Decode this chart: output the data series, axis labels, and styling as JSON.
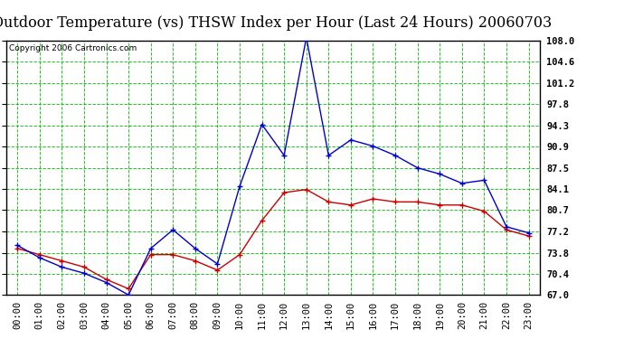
{
  "title": "Outdoor Temperature (vs) THSW Index per Hour (Last 24 Hours) 20060703",
  "copyright": "Copyright 2006 Cartronics.com",
  "hours": [
    "00:00",
    "01:00",
    "02:00",
    "03:00",
    "04:00",
    "05:00",
    "06:00",
    "07:00",
    "08:00",
    "09:00",
    "10:00",
    "11:00",
    "12:00",
    "13:00",
    "14:00",
    "15:00",
    "16:00",
    "17:00",
    "18:00",
    "19:00",
    "20:00",
    "21:00",
    "22:00",
    "23:00"
  ],
  "temp": [
    74.5,
    73.5,
    72.5,
    71.5,
    69.5,
    68.0,
    73.5,
    73.5,
    72.5,
    71.0,
    73.5,
    79.0,
    83.5,
    84.0,
    82.0,
    81.5,
    82.5,
    82.0,
    82.0,
    81.5,
    81.5,
    80.5,
    77.5,
    76.5
  ],
  "thsw": [
    75.0,
    73.0,
    71.5,
    70.5,
    69.0,
    67.0,
    74.5,
    77.5,
    74.5,
    72.0,
    84.5,
    94.5,
    89.5,
    108.5,
    89.5,
    92.0,
    91.0,
    89.5,
    87.5,
    86.5,
    85.0,
    85.5,
    78.0,
    77.0
  ],
  "temp_color": "#cc0000",
  "thsw_color": "#0000cc",
  "bg_color": "#ffffff",
  "grid_color": "#00bb00",
  "ylim": [
    67.0,
    108.0
  ],
  "yticks": [
    67.0,
    70.4,
    73.8,
    77.2,
    80.7,
    84.1,
    87.5,
    90.9,
    94.3,
    97.8,
    101.2,
    104.6,
    108.0
  ],
  "title_fontsize": 11.5,
  "copyright_fontsize": 6.5,
  "tick_fontsize": 7.5
}
